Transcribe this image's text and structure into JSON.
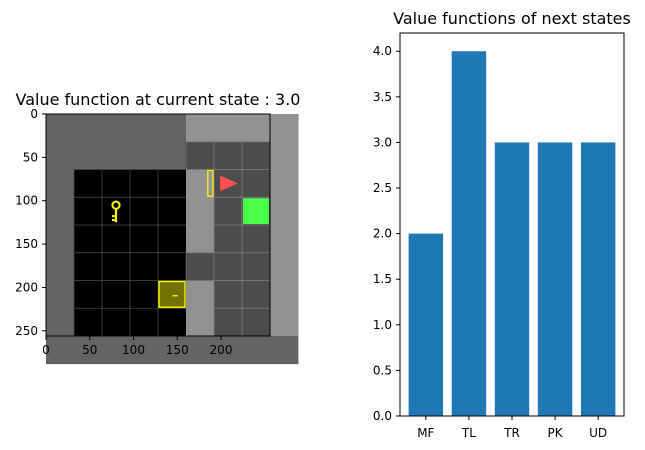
{
  "chart_data": [
    {
      "type": "heatmap",
      "title": "Value function at current state : 3.0",
      "xticks": [
        0,
        50,
        100,
        150,
        200
      ],
      "yticks": [
        0,
        50,
        100,
        150,
        200,
        250
      ],
      "xlim": [
        0,
        256
      ],
      "ylim": [
        256,
        0
      ],
      "grid": false,
      "scene": {
        "grid_size": 9,
        "tile_px": 32,
        "wall_color": "#646464",
        "floor_color": "#000000",
        "grid_line_color": "#464646",
        "agent_color": "#ff5050",
        "goal_color": "#4cff4c",
        "key_color": "#ffff00",
        "door_color": "#ffff00",
        "locked_door_fill": "#727200",
        "wall_cells": [
          [
            0,
            0
          ],
          [
            1,
            0
          ],
          [
            2,
            0
          ],
          [
            3,
            0
          ],
          [
            4,
            0
          ],
          [
            0,
            1
          ],
          [
            0,
            2
          ],
          [
            0,
            3
          ],
          [
            0,
            4
          ],
          [
            0,
            5
          ],
          [
            0,
            6
          ],
          [
            0,
            7
          ],
          [
            0,
            8
          ],
          [
            1,
            8
          ],
          [
            2,
            8
          ],
          [
            3,
            8
          ],
          [
            4,
            8
          ],
          [
            5,
            8
          ],
          [
            6,
            8
          ],
          [
            7,
            8
          ],
          [
            8,
            8
          ],
          [
            8,
            0
          ],
          [
            8,
            1
          ],
          [
            8,
            2
          ],
          [
            8,
            3
          ],
          [
            8,
            4
          ],
          [
            8,
            5
          ],
          [
            8,
            6
          ],
          [
            8,
            7
          ],
          [
            5,
            0
          ],
          [
            6,
            0
          ],
          [
            7,
            0
          ],
          [
            5,
            2
          ],
          [
            5,
            3
          ],
          [
            5,
            4
          ],
          [
            5,
            6
          ],
          [
            5,
            7
          ],
          [
            1,
            1
          ],
          [
            2,
            1
          ],
          [
            3,
            1
          ],
          [
            4,
            1
          ]
        ],
        "visible_region": {
          "x0": 5,
          "y0": 0,
          "x1": 9,
          "y1": 8
        },
        "agent": {
          "cell": [
            6,
            2
          ],
          "direction": "right"
        },
        "goal": {
          "cell": [
            7,
            3
          ]
        },
        "key": {
          "cell": [
            2,
            3
          ]
        },
        "open_door": {
          "cell": [
            5,
            2
          ]
        },
        "locked_door": {
          "cell": [
            4,
            6
          ]
        }
      }
    },
    {
      "type": "bar",
      "title": "Value functions of next states",
      "categories": [
        "MF",
        "TL",
        "TR",
        "PK",
        "UD"
      ],
      "values": [
        2.0,
        4.0,
        3.0,
        3.0,
        3.0
      ],
      "xlabel": "",
      "ylabel": "",
      "ylim": [
        0,
        4.2
      ],
      "yticks": [
        0.0,
        0.5,
        1.0,
        1.5,
        2.0,
        2.5,
        3.0,
        3.5,
        4.0
      ],
      "ytick_labels": [
        "0.0",
        "0.5",
        "1.0",
        "1.5",
        "2.0",
        "2.5",
        "3.0",
        "3.5",
        "4.0"
      ],
      "bar_color": "#1f77b4",
      "grid": false
    }
  ]
}
